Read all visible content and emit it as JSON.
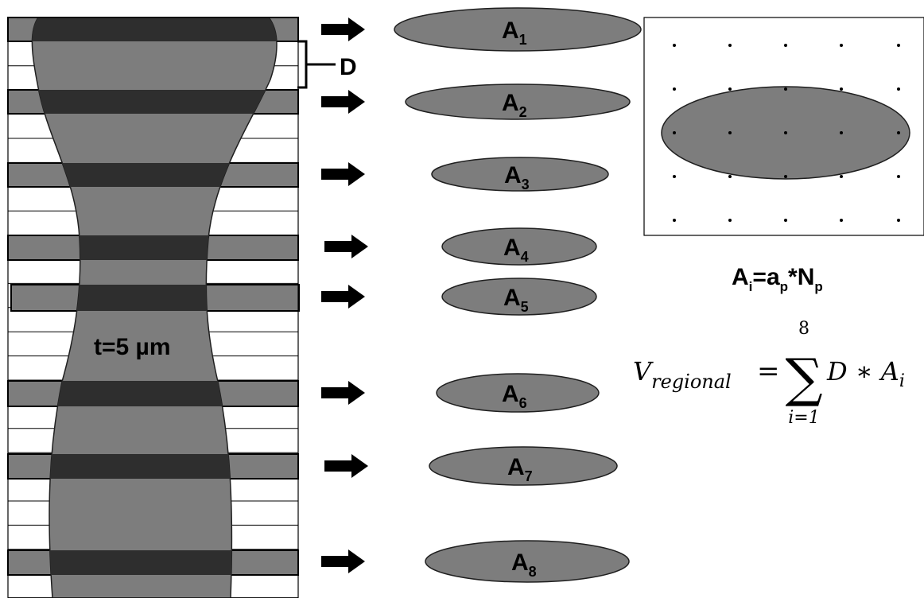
{
  "thickness_label": "t=5 µm",
  "spacing_label": "D",
  "sections": [
    {
      "base": "A",
      "sub": "1"
    },
    {
      "base": "A",
      "sub": "2"
    },
    {
      "base": "A",
      "sub": "3"
    },
    {
      "base": "A",
      "sub": "4"
    },
    {
      "base": "A",
      "sub": "5"
    },
    {
      "base": "A",
      "sub": "6"
    },
    {
      "base": "A",
      "sub": "7"
    },
    {
      "base": "A",
      "sub": "8"
    }
  ],
  "area_formula": {
    "lhs": "A",
    "lhs_sub": "i",
    "eq": "=",
    "a": "a",
    "a_sub": "p",
    "op": "*",
    "n": "N",
    "n_sub": "p"
  },
  "volume_formula": {
    "lhs": "V",
    "lhs_sub": "regional",
    "eq": "=",
    "sum_symbol": "∑",
    "upper": "8",
    "lower": "i=1",
    "term": "D ∗ A",
    "term_sub": "i"
  }
}
